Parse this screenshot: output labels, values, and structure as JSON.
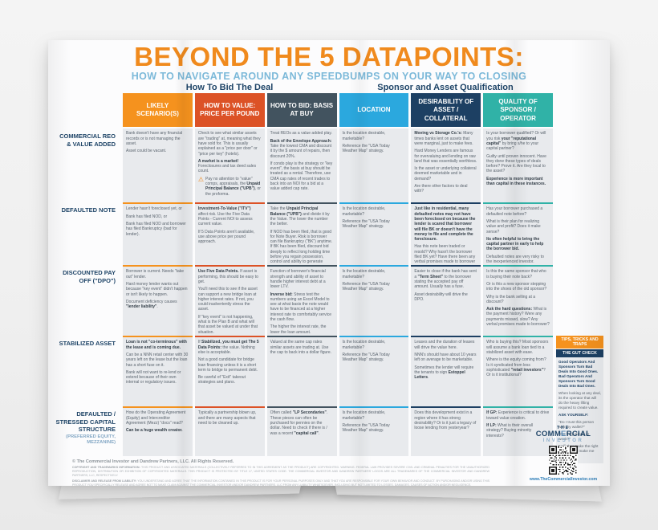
{
  "header": {
    "title": "BEYOND THE 5 DATAPOINTS:",
    "subtitle": "HOW TO NAVIGATE AROUND ANY SPEEDBUMPS ON YOUR WAY TO CLOSING",
    "group_left": "How To Bid The Deal",
    "group_right": "Sponsor and Asset Qualification"
  },
  "table": {
    "columns": [
      {
        "label": "LIKELY SCENARIO(S)",
        "color": "#F5921E"
      },
      {
        "label": "HOW TO VALUE: PRICE PER POUND",
        "color": "#DC5226"
      },
      {
        "label": "HOW TO BID: BASIS AT BUY",
        "color": "#42535F"
      },
      {
        "label": "LOCATION",
        "color": "#2BA8DE"
      },
      {
        "label": "DESIRABILITY OF ASSET / COLLATERAL",
        "color": "#1D4063"
      },
      {
        "label": "QUALITY OF SPONSOR / OPERATOR",
        "color": "#30B2A7"
      }
    ],
    "rows": [
      {
        "label": "COMMERCIAL REO & VALUE ADDED",
        "cells": [
          [
            {
              "t": "Bank doesn't have any financial records or is not managing the asset."
            },
            {
              "t": "Asset could be vacant."
            }
          ],
          [
            {
              "t": "Check to see what similar assets are \"trading\" at, meaning what they have sold for. This is usually explained as a \"price per door\" or \"price per key\" (hotels)."
            },
            {
              "t": "**A market is a market!** Foreclosures and tax deed sales count."
            },
            {
              "t": "Pay no attention to \"value\" comps, appraisals, the **Unpaid Principal Balance (\"UPB\")**, or the proforma.",
              "warn": true
            }
          ],
          [
            {
              "t": "Treat REOs as a value added play."
            },
            {
              "t": "**Back of the Envelope Approach:** Take the lowest CMA and discount it by the $ amount of repairs, then discount 20%."
            },
            {
              "t": "If condo play is the strategy or \"key event\", the basis at buy should be treated as a rental. Therefore, use CMA cap rates of recent trades to back into an NOI for a bid at a value added cap rate."
            }
          ],
          [
            {
              "t": "Is the location desirable, marketable?"
            },
            {
              "t": "Reference the \"USA Today Weather Map\" strategy."
            }
          ],
          [
            {
              "t": "**Moving vs Storage Co.'s:** Many times banks lent on assets that were marginal, just to make fees."
            },
            {
              "t": "Hard Money Lenders are famous for overvaluing and lending on raw land that was essentially worthless."
            },
            {
              "t": "Is the asset or underlying collateral deemed marketable and in demand?"
            },
            {
              "t": "Are there other factors to deal with?"
            }
          ],
          [
            {
              "t": "Is your borrower qualified? Or will you risk **your \"reputational capital\"** by bring s/he to your capital partner?"
            },
            {
              "t": "Guilty until proven innocent. Have they done these types of deals before? Prove it. Are they local to the asset?"
            },
            {
              "t": "**Experience is more important than capital in these instances.**"
            }
          ]
        ]
      },
      {
        "label": "DEFAULTED NOTE",
        "cells": [
          [
            {
              "t": "Lender hasn't foreclosed yet, or"
            },
            {
              "t": "Bank has filed NOD, or"
            },
            {
              "t": "Bank has filed NOD and borrower has filed Bankruptcy (bad for lender)."
            }
          ],
          [
            {
              "t": "**Investment-To-Value (\"ITV\")** affect risk. Use the Five Data Points - Current NOI to assess current value."
            },
            {
              "t": "If 5 Data Points aren't available, use above price per pound approach."
            }
          ],
          [
            {
              "t": "Take the **Unpaid Principal Balance (\"UPB\")** and divide it by the Value. The lower the number the better."
            },
            {
              "t": "If NOD has been filed, that is good for Note Buyer. Risk is borrower can file Bankruptcy (\"BK\") anytime. If BK has been filed, discount bid deeply to reflect long holding time before you regain possession, control and ability to generate value (profit)."
            }
          ],
          [
            {
              "t": "Is the location desirable, marketable?"
            },
            {
              "t": "Reference the \"USA Today Weather Map\" strategy."
            }
          ],
          [
            {
              "t": "**Just like in residential, many defaulted notes may not have been foreclosed on because the lender is scared that borrower will file BK or doesn't have the money to file and complete the foreclosure.**"
            },
            {
              "t": "Has this note been traded or resold? Why hasn't the borrower filed BK yet? Have there been any verbal promises made to borrower from lender?"
            }
          ],
          [
            {
              "t": "Has your borrower purchased a defaulted note before?"
            },
            {
              "t": "What is their plan for realizing value and profit? Does it make sense?"
            },
            {
              "t": "**Its often helpful to bring the capital partner in early to help the borrower bid.**"
            },
            {
              "t": "Defaulted notes are very risky to the inexperienced investor."
            }
          ]
        ]
      },
      {
        "label": "DISCOUNTED PAY OFF (\"DPO\")",
        "cells": [
          [
            {
              "t": "Borrower is current. Needs \"take out\" lender."
            },
            {
              "t": "Hard money lender wants out because \"key event\" didn't happen or isn't likely to happen."
            },
            {
              "t": "Document deficiency causes **\"lender liability\"**."
            }
          ],
          [
            {
              "t": "**Use Five Data Points.** If asset is performing, this should be easy to get."
            },
            {
              "t": "You'll need this to see if the asset can support a new bridge loan at higher interest rates. If not, you could inadvertently stress the asset."
            },
            {
              "t": "If \"key event\" is not happening, what is the Plan B and what will that asset be valued at under that situation."
            }
          ],
          [
            {
              "t": "Function of borrower's financial strength and ability of asset to handle higher interest debt at a lower LTV."
            },
            {
              "t": "**Inverse bid:** Stress test the numbers using an Excel Model to see at what basis the note would have to be financed at a higher interest rate to comfortably service the cash flow."
            },
            {
              "t": "The higher the interest rate, the lower the loan amount."
            }
          ],
          [
            {
              "t": "Is the location desirable, marketable?"
            },
            {
              "t": "Reference the \"USA Today Weather Map\" strategy."
            }
          ],
          [
            {
              "t": "Easier to close if the bank has sent a **\"Term Sheet\"** to the borrower stating the accepted pay off amount. Usually has a fuse."
            },
            {
              "t": "Asset desirability will drive the DPO."
            }
          ],
          [
            {
              "t": "Is this the same sponsor that who is buying their note back?"
            },
            {
              "t": "Or is this a new sponsor stepping into the shoes of the old sponsor?"
            },
            {
              "t": "Why is the bank selling at a discount?"
            },
            {
              "t": "**Ask the hard questions:** What is the payment history? Were any payments missed, slow? Any verbal promises made to borrower?"
            }
          ]
        ]
      },
      {
        "label": "STABILIZED ASSET",
        "cells": [
          [
            {
              "t": "**Loan is not \"co-terminous\" with the lease and is coming due.**"
            },
            {
              "t": "Can be a NNN retail center with 30 years left on the lease but the loan has a short fuse on it."
            },
            {
              "t": "Bank will not want to re-lend or extend because of their own internal or regulatory issues."
            }
          ],
          [
            {
              "t": "If **Stabilized, you must get The 5 Data Points:** the value. Nothing else is acceptable."
            },
            {
              "t": "Not a good candidate for bridge loan financing unless it is a short term to bridge to permanent debt."
            },
            {
              "t": "Be careful of \"Exit\" takeout strategies and plans."
            }
          ],
          [
            {
              "t": "Valued at the same cap rates similar assets are trading at. Use the cap to back into a dollar figure."
            }
          ],
          [
            {
              "t": "Is the location desirable, marketable?"
            },
            {
              "t": "Reference the \"USA Today Weather Map\" strategy."
            }
          ],
          [
            {
              "t": "Leases and the duration of leases will drive the value here."
            },
            {
              "t": "NNN's should have about 10 years left on average to be marketable."
            },
            {
              "t": "Sometimes the lender will require the tenants to sign **Estoppel Letters**."
            }
          ],
          [
            {
              "t": "Who is buying this? Most sponsors will assume a bank loan tied to a stabilized asset with ease."
            },
            {
              "t": "Where is the equity coming from? Is it syndicated from less sophisticated **\"retail investors\"**? Or is it institutional?"
            }
          ]
        ]
      },
      {
        "label": "DEFAULTED / STRESSED CAPITAL STRUCTURE",
        "sublabel": "(PREFERRED EQUITY, MEZZANINE)",
        "cells": [
          [
            {
              "t": "How do the Operating Agreement (Equity) and Intercreditor Agreement (Mezz) \"docs\" read?"
            },
            {
              "t": "**Can be a huge wealth creator.**"
            }
          ],
          [
            {
              "t": "Typically a partnership blown up, and there are many aspects that need to be cleaned up."
            }
          ],
          [
            {
              "t": "Often called **\"LP Secondaries\"**. These pieces can often be purchased for pennies on the dollar. Need to check if there is / was a recent **\"capital call\"**."
            }
          ],
          [
            {
              "t": "Is the location desirable, marketable?"
            },
            {
              "t": "Reference the \"USA Today Weather Map\" strategy."
            }
          ],
          [
            {
              "t": "Does this development exist in a region where it has strong desirability? Or is it just a legacy of loose lending from yesteryear?"
            }
          ],
          [
            {
              "t": "**If GP:** Experience is critical to drive toward value creation."
            },
            {
              "t": "**If LP:** What is their overall strategy? Buying minority interests?"
            }
          ]
        ]
      }
    ]
  },
  "tips": {
    "header": "TIPS, TRICKS AND TRAPS",
    "subheader": "THE GUT CHECK",
    "paras": [
      {
        "t": "**Good Operators And Sponsors Turn Bad Deals Into Good Ones. Bad Operators And Sponsors Turn Good Deals Into Bad Ones.**"
      },
      {
        "t": "When looking at any deal, its the operator that will do the heavy lifting required to create value."
      },
      {
        "t": "**ASK YOURSELF:**"
      },
      {
        "t": "\"Do I trust this person with my wallet?\""
      },
      {
        "t": "\"Are they strong or weak?\""
      },
      {
        "t": "\"Will they make the right decisions to make me money?\""
      }
    ]
  },
  "footer": {
    "copyright": "© The Commercial Investor and Dandrew Partners, LLC. All Rights Reserved.",
    "legal_blocks": [
      {
        "heading": "COPYRIGHT AND TRADEMARKS INFORMATION: ",
        "text": "THIS PRODUCT AND ASSOCIATED MATERIALS (COLLECTIVELY REFERRED TO IN THIS AGREEMENT AS THE PRODUCT) ARE COPYRIGHTED. WARNING: FEDERAL LAW PROVIDES SEVERE CIVIL AND CRIMINAL PENALTIES FOR THE UNAUTHORIZED REPRODUCTION, DISTRIBUTION OR EXHIBITION OF COPYRIGHTED MATERIALS. THIS PRODUCT IS PROTECTED BY TITLE 17, UNITED STATES CODE. THE COMMERCIAL INVESTOR AND DANDREW PARTNERS' LOGOS ARE ALL TRADEMARKS OF THE COMMERCIAL INVESTOR AND DANDREW PARTNERS, LLC, RESPECTIVELY."
      },
      {
        "heading": "DISCLAIMER AND RELEASE FROM LIABILITY: ",
        "text": "YOU UNDERSTAND AND AGREE THAT THE INFORMATION CONTAINED IN THIS PRODUCT IS FOR YOUR PERSONAL PURPOSES ONLY AND THAT YOU ARE RESPONSIBLE FOR YOUR OWN BEHAVIOR AND CONDUCT. BY PURCHASING AND/OR USING THIS PRODUCT YOU SPECIFICALLY RELEASE AND AGREE NOT TO MAKE CLAIM AGAINST THE COMMERCIAL INVESTOR AND/OR DANDREW PARTNERS, LLC FROM ANY LIABILITY WHATSOEVER, INCLUDING BUT NOT LIMITED TO LOSSES, DAMAGES, CAUSES OF ACTION AND/OR NEGLIGENCE."
      }
    ],
    "logo": {
      "top": "THE",
      "main": "COMMERCIAL",
      "sub": "INVESTOR"
    },
    "website": "www.TheCommercialInvestor.com"
  }
}
